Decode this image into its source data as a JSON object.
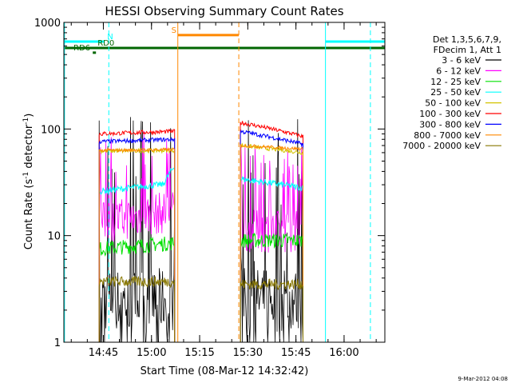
{
  "chart_data": {
    "type": "line",
    "title": "HESSI Observing Summary Count Rates",
    "xlabel": "Start Time (08-Mar-12 14:32:42)",
    "ylabel_main": "Count Rate (s",
    "ylabel_sup1": "-1",
    "ylabel_mid": " detector",
    "ylabel_sup2": "-1",
    "ylabel_end": ")",
    "yscale": "log",
    "ylim": [
      1,
      1000
    ],
    "x_units": "minutes after 14:32:42",
    "xlim": [
      0,
      100
    ],
    "x_ticks": [
      {
        "t": 12.3,
        "label": "14:45"
      },
      {
        "t": 27.3,
        "label": "15:00"
      },
      {
        "t": 42.3,
        "label": "15:15"
      },
      {
        "t": 57.3,
        "label": "15:30"
      },
      {
        "t": 72.3,
        "label": "15:45"
      },
      {
        "t": 87.3,
        "label": "16:00"
      }
    ],
    "y_ticks": [
      {
        "v": 1,
        "label": "1"
      },
      {
        "v": 10,
        "label": "10"
      },
      {
        "v": 100,
        "label": "100"
      },
      {
        "v": 1000,
        "label": "1000"
      }
    ],
    "legend": {
      "placement": "right",
      "header": [
        "Det 1,3,5,6,7,9,",
        "FDecim 1, Att 1"
      ],
      "entries": [
        {
          "label": "3 - 6 keV",
          "color": "#000000"
        },
        {
          "label": "6 - 12 keV",
          "color": "#ff00ff"
        },
        {
          "label": "12 - 25 keV",
          "color": "#00e000"
        },
        {
          "label": "25 - 50 keV",
          "color": "#00ffff"
        },
        {
          "label": "50 - 100 keV",
          "color": "#d4c400"
        },
        {
          "label": "100 - 300 keV",
          "color": "#ff0000"
        },
        {
          "label": "300 - 800 keV",
          "color": "#0000ff"
        },
        {
          "label": "800 - 7000 keV",
          "color": "#ff8800"
        },
        {
          "label": "7000 - 20000 keV",
          "color": "#887700"
        }
      ]
    },
    "intervals": [
      [
        11.0,
        34.5
      ],
      [
        55.0,
        74.5
      ]
    ],
    "series": [
      {
        "label": "3 - 6 keV",
        "color": "#000000",
        "seg1": [
          2.5,
          2.5
        ],
        "seg2": [
          2.5,
          2.5
        ],
        "noise": 0.3,
        "spiky": true
      },
      {
        "label": "6 - 12 keV",
        "color": "#ff00ff",
        "seg1": [
          13,
          17
        ],
        "seg2": [
          11,
          11
        ],
        "noise": 0.2,
        "spiky": true
      },
      {
        "label": "12 - 25 keV",
        "color": "#00e000",
        "seg1": [
          7.5,
          8.5
        ],
        "seg2": [
          9,
          9
        ],
        "noise": 0.07,
        "spiky": false
      },
      {
        "label": "25 - 50 keV",
        "color": "#00ffff",
        "seg1": [
          26,
          31
        ],
        "seg2": [
          34,
          28
        ],
        "noise": 0.03,
        "spiky": false
      },
      {
        "label": "50 - 100 keV",
        "color": "#d4c400",
        "seg1": [
          62,
          63
        ],
        "seg2": [
          70,
          60
        ],
        "noise": 0.02,
        "spiky": false
      },
      {
        "label": "100 - 300 keV",
        "color": "#ff0000",
        "seg1": [
          90,
          95
        ],
        "seg2": [
          115,
          85
        ],
        "noise": 0.02,
        "spiky": false
      },
      {
        "label": "300 - 800 keV",
        "color": "#0000ff",
        "seg1": [
          76,
          80
        ],
        "seg2": [
          95,
          72
        ],
        "noise": 0.02,
        "spiky": false
      },
      {
        "label": "800 - 7000 keV",
        "color": "#ff8800",
        "seg1": [
          63,
          64
        ],
        "seg2": [
          70,
          65
        ],
        "noise": 0.015,
        "spiky": false
      },
      {
        "label": "7000 - 20000 keV",
        "color": "#887700",
        "seg1": [
          3.7,
          3.7
        ],
        "seg2": [
          3.5,
          3.5
        ],
        "noise": 0.05,
        "spiky": false
      }
    ],
    "flag_bars": [
      {
        "label": "N",
        "color": "#00ffff",
        "y": 660,
        "ranges": [
          [
            0,
            12.5
          ],
          [
            81.5,
            100
          ]
        ],
        "label_at": 13.5
      },
      {
        "label": "RD0",
        "color": "#006600",
        "y": 575,
        "ranges": [
          [
            0,
            100
          ]
        ],
        "label_at": 10.5
      },
      {
        "label": "RD6",
        "color": "#006600",
        "y": 520,
        "ranges": [
          [
            9.0,
            10.0
          ]
        ],
        "label_at": 3.0
      },
      {
        "label": "S",
        "color": "#ff8800",
        "y": 760,
        "ranges": [
          [
            35.5,
            54.5
          ]
        ],
        "label_at": 33.5
      }
    ],
    "vlines": [
      {
        "t": 0.2,
        "color": "#00ffff",
        "dash": false
      },
      {
        "t": 14.0,
        "color": "#00ffff",
        "dash": true
      },
      {
        "t": 35.5,
        "color": "#ff8800",
        "dash": false
      },
      {
        "t": 54.5,
        "color": "#ff8800",
        "dash": true
      },
      {
        "t": 81.5,
        "color": "#00ffff",
        "dash": false
      },
      {
        "t": 95.5,
        "color": "#00ffff",
        "dash": true
      }
    ],
    "footer_date": "9-Mar-2012 04:08"
  }
}
